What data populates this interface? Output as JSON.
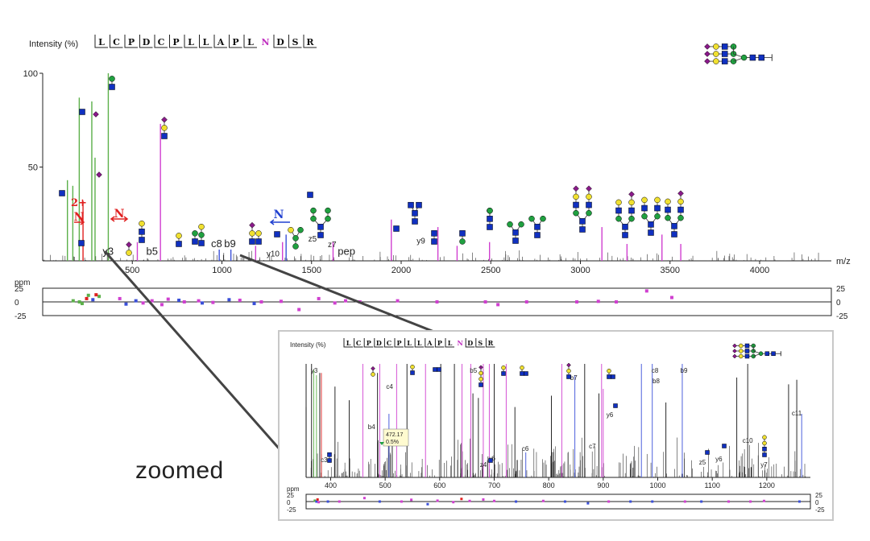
{
  "colors": {
    "glycan_green": "#5cb04a",
    "y_ion_magenta": "#d040d0",
    "b_c_ion_blue": "#3a4fd8",
    "unassigned_black": "#111111",
    "red_marker": "#e02020",
    "glyco_glcnac_blue": "#1030c0",
    "glyco_gal_yellow": "#f0e030",
    "glyco_man_green": "#20a040",
    "glyco_neuac_purple": "#8a1a8a",
    "highlight_n": "#c030c0",
    "n_arrow_blue": "#2040d0"
  },
  "zoom_label": "zoomed",
  "main": {
    "ylabel": "Intensity (%)",
    "xlabel": "m/z",
    "ppm_label": "ppm",
    "sequence": [
      "L",
      "C",
      "P",
      "D",
      "C",
      "P",
      "L",
      "L",
      "A",
      "P",
      "L",
      "N",
      "D",
      "S",
      "R"
    ],
    "highlight_index": 11,
    "charge_label": "2+",
    "n_label": "N"
  },
  "chart_data": [
    {
      "type": "bar",
      "title": "",
      "ylabel": "Intensity (%)",
      "xlabel": "m/z",
      "xlim": [
        0,
        4400
      ],
      "ylim": [
        0,
        100
      ],
      "xticks": [
        500,
        1000,
        1500,
        2000,
        2500,
        3000,
        3500,
        4000
      ],
      "yticks": [
        50,
        100
      ],
      "peak_labels": [
        {
          "label": "y3",
          "x": 365,
          "y": 2,
          "class": "black"
        },
        {
          "label": "b5",
          "x": 610,
          "y": 2,
          "class": "black"
        },
        {
          "label": "c8",
          "x": 970,
          "y": 6,
          "class": "black"
        },
        {
          "label": "b9",
          "x": 1045,
          "y": 6,
          "class": "black"
        },
        {
          "label": "y10",
          "x": 1285,
          "y": 1,
          "class": "magenta"
        },
        {
          "label": "z5",
          "x": 1505,
          "y": 9,
          "class": "magenta"
        },
        {
          "label": "z7",
          "x": 1615,
          "y": 6,
          "class": "magenta"
        },
        {
          "label": "pep",
          "x": 1695,
          "y": 2,
          "class": "black"
        },
        {
          "label": "y9",
          "x": 2110,
          "y": 8,
          "class": "magenta"
        }
      ],
      "series": [
        {
          "class": "green",
          "peaks": [
            [
              138,
              43
            ],
            [
              168,
              40
            ],
            [
              204,
              87
            ],
            [
              274,
              85
            ],
            [
              292,
              55
            ],
            [
              366,
              100
            ]
          ]
        },
        {
          "class": "magenta",
          "peaks": [
            [
              528,
              10
            ],
            [
              657,
              73
            ],
            [
              1188,
              8
            ],
            [
              1338,
              10
            ],
            [
              1620,
              10
            ],
            [
              1945,
              22
            ],
            [
              2205,
              18
            ],
            [
              2312,
              8
            ],
            [
              2493,
              10
            ],
            [
              3120,
              18
            ],
            [
              3260,
              9
            ],
            [
              3455,
              14
            ],
            [
              3560,
              9
            ]
          ]
        },
        {
          "class": "blue",
          "peaks": [
            [
              985,
              6
            ],
            [
              1050,
              6
            ],
            [
              1358,
              14
            ]
          ]
        },
        {
          "class": "red",
          "peaks": [
            [
              225,
              32
            ]
          ]
        }
      ],
      "ppm": {
        "ylim": [
          -25,
          25
        ],
        "yticks": [
          25,
          0,
          -25
        ],
        "points": [
          {
            "x": 170,
            "y": 2,
            "class": "green"
          },
          {
            "x": 205,
            "y": 0,
            "class": "green"
          },
          {
            "x": 220,
            "y": -3,
            "class": "green"
          },
          {
            "x": 255,
            "y": 12,
            "class": "green"
          },
          {
            "x": 315,
            "y": 10,
            "class": "green"
          },
          {
            "x": 245,
            "y": 6,
            "class": "red"
          },
          {
            "x": 298,
            "y": 13,
            "class": "red"
          },
          {
            "x": 280,
            "y": 4,
            "class": "blue"
          },
          {
            "x": 465,
            "y": -4,
            "class": "blue"
          },
          {
            "x": 520,
            "y": 2,
            "class": "blue"
          },
          {
            "x": 760,
            "y": 3,
            "class": "blue"
          },
          {
            "x": 890,
            "y": -2,
            "class": "blue"
          },
          {
            "x": 1040,
            "y": 4,
            "class": "blue"
          },
          {
            "x": 1180,
            "y": -3,
            "class": "blue"
          },
          {
            "x": 430,
            "y": 6,
            "class": "magenta"
          },
          {
            "x": 560,
            "y": -2,
            "class": "magenta"
          },
          {
            "x": 610,
            "y": 2,
            "class": "magenta"
          },
          {
            "x": 665,
            "y": -5,
            "class": "magenta"
          },
          {
            "x": 700,
            "y": 5,
            "class": "magenta"
          },
          {
            "x": 790,
            "y": 0,
            "class": "magenta"
          },
          {
            "x": 870,
            "y": 2,
            "class": "magenta"
          },
          {
            "x": 950,
            "y": -1,
            "class": "magenta"
          },
          {
            "x": 1100,
            "y": 3,
            "class": "magenta"
          },
          {
            "x": 1220,
            "y": 0,
            "class": "magenta"
          },
          {
            "x": 1330,
            "y": 1,
            "class": "magenta"
          },
          {
            "x": 1430,
            "y": -14,
            "class": "magenta"
          },
          {
            "x": 1540,
            "y": 6,
            "class": "magenta"
          },
          {
            "x": 1630,
            "y": -2,
            "class": "magenta"
          },
          {
            "x": 1690,
            "y": 2,
            "class": "magenta"
          },
          {
            "x": 1770,
            "y": 0,
            "class": "magenta"
          },
          {
            "x": 1980,
            "y": 2,
            "class": "magenta"
          },
          {
            "x": 2200,
            "y": 0,
            "class": "magenta"
          },
          {
            "x": 2470,
            "y": 0,
            "class": "magenta"
          },
          {
            "x": 2540,
            "y": -5,
            "class": "magenta"
          },
          {
            "x": 2700,
            "y": 0,
            "class": "magenta"
          },
          {
            "x": 2980,
            "y": 0,
            "class": "magenta"
          },
          {
            "x": 3100,
            "y": 1,
            "class": "magenta"
          },
          {
            "x": 3200,
            "y": 0,
            "class": "magenta"
          },
          {
            "x": 3370,
            "y": 20,
            "class": "magenta"
          },
          {
            "x": 3510,
            "y": 8,
            "class": "magenta"
          }
        ]
      }
    },
    {
      "type": "bar",
      "title": "",
      "ylabel": "Intensity (%)",
      "xlim": [
        355,
        1280
      ],
      "ylim": [
        0,
        100
      ],
      "xticks": [
        400,
        500,
        600,
        700,
        800,
        900,
        1000,
        1100,
        1200
      ],
      "peak_labels": [
        {
          "label": "y3",
          "x": 370,
          "class": "black"
        },
        {
          "label": "c3",
          "x": 388,
          "class": "black"
        },
        {
          "label": "c4",
          "x": 508,
          "class": "black"
        },
        {
          "label": "b4",
          "x": 475,
          "class": "black"
        },
        {
          "label": "b5",
          "x": 662,
          "class": "black"
        },
        {
          "label": "y6",
          "x": 696,
          "class": "black"
        },
        {
          "label": "z4",
          "x": 680,
          "class": "magenta"
        },
        {
          "label": "c6",
          "x": 757,
          "class": "black"
        },
        {
          "label": "b7",
          "x": 846,
          "class": "black"
        },
        {
          "label": "c7",
          "x": 880,
          "class": "black"
        },
        {
          "label": "y6",
          "x": 912,
          "class": "magenta"
        },
        {
          "label": "c8",
          "x": 995,
          "class": "black"
        },
        {
          "label": "b8",
          "x": 997,
          "class": "black"
        },
        {
          "label": "b9",
          "x": 1048,
          "class": "black"
        },
        {
          "label": "z5",
          "x": 1082,
          "class": "magenta"
        },
        {
          "label": "y6",
          "x": 1112,
          "class": "magenta"
        },
        {
          "label": "c10",
          "x": 1165,
          "class": "black"
        },
        {
          "label": "y7",
          "x": 1195,
          "class": "magenta"
        },
        {
          "label": "c11",
          "x": 1255,
          "class": "black"
        }
      ],
      "tooltip": {
        "value": "472.17",
        "percent": "0.5%"
      },
      "series": [
        {
          "class": "green",
          "peaks": [
            [
              369,
              95
            ],
            [
              374,
              90
            ]
          ]
        },
        {
          "class": "red",
          "peaks": [
            [
              383,
              92
            ]
          ]
        },
        {
          "class": "magenta",
          "peaks": [
            [
              459,
              100
            ],
            [
              490,
              100
            ],
            [
              521,
              100
            ],
            [
              574,
              100
            ],
            [
              641,
              100
            ],
            [
              657,
              100
            ],
            [
              680,
              100
            ],
            [
              691,
              100
            ],
            [
              722,
              100
            ],
            [
              824,
              100
            ],
            [
              897,
              100
            ],
            [
              900,
              78
            ]
          ]
        },
        {
          "class": "blue",
          "peaks": [
            [
              507,
              56
            ],
            [
              758,
              22
            ],
            [
              848,
              90
            ],
            [
              970,
              100
            ],
            [
              990,
              100
            ],
            [
              1045,
              100
            ],
            [
              1264,
              56
            ]
          ]
        },
        {
          "class": "black",
          "peaks": [
            [
              355,
              62
            ],
            [
              365,
              100
            ],
            [
              380,
              92
            ],
            [
              408,
              80
            ],
            [
              434,
              68
            ],
            [
              486,
              92
            ],
            [
              513,
              32
            ],
            [
              540,
              100
            ],
            [
              602,
              100
            ],
            [
              627,
              100
            ],
            [
              661,
              74
            ],
            [
              671,
              70
            ],
            [
              700,
              100
            ],
            [
              738,
              62
            ],
            [
              805,
              72
            ],
            [
              866,
              100
            ],
            [
              892,
              74
            ],
            [
              1015,
              66
            ],
            [
              1145,
              88
            ],
            [
              1165,
              100
            ],
            [
              1240,
              82
            ],
            [
              1255,
              86
            ]
          ]
        }
      ],
      "ppm": {
        "ylim": [
          -25,
          25
        ],
        "yticks": [
          25,
          0,
          -25
        ],
        "points": [
          {
            "x": 371,
            "y": 3,
            "class": "green"
          },
          {
            "x": 374,
            "y": 0,
            "class": "blue"
          },
          {
            "x": 376,
            "y": 7,
            "class": "red"
          },
          {
            "x": 378,
            "y": -2,
            "class": "magenta"
          },
          {
            "x": 395,
            "y": 0,
            "class": "blue"
          },
          {
            "x": 416,
            "y": 0,
            "class": "magenta"
          },
          {
            "x": 462,
            "y": 12,
            "class": "magenta"
          },
          {
            "x": 490,
            "y": 0,
            "class": "blue"
          },
          {
            "x": 530,
            "y": 0,
            "class": "magenta"
          },
          {
            "x": 548,
            "y": 6,
            "class": "magenta"
          },
          {
            "x": 578,
            "y": -9,
            "class": "blue"
          },
          {
            "x": 596,
            "y": 3,
            "class": "magenta"
          },
          {
            "x": 625,
            "y": -2,
            "class": "magenta"
          },
          {
            "x": 640,
            "y": 9,
            "class": "red"
          },
          {
            "x": 655,
            "y": 2,
            "class": "magenta"
          },
          {
            "x": 680,
            "y": 7,
            "class": "magenta"
          },
          {
            "x": 700,
            "y": 2,
            "class": "magenta"
          },
          {
            "x": 740,
            "y": 0,
            "class": "blue"
          },
          {
            "x": 790,
            "y": 2,
            "class": "magenta"
          },
          {
            "x": 830,
            "y": 0,
            "class": "blue"
          },
          {
            "x": 872,
            "y": -6,
            "class": "blue"
          },
          {
            "x": 910,
            "y": 0,
            "class": "magenta"
          },
          {
            "x": 950,
            "y": 0,
            "class": "blue"
          },
          {
            "x": 990,
            "y": 0,
            "class": "blue"
          },
          {
            "x": 1050,
            "y": 0,
            "class": "magenta"
          },
          {
            "x": 1080,
            "y": 0,
            "class": "blue"
          },
          {
            "x": 1130,
            "y": 0,
            "class": "magenta"
          },
          {
            "x": 1170,
            "y": 0,
            "class": "magenta"
          },
          {
            "x": 1195,
            "y": 2,
            "class": "magenta"
          },
          {
            "x": 1260,
            "y": 0,
            "class": "blue"
          }
        ]
      }
    }
  ]
}
